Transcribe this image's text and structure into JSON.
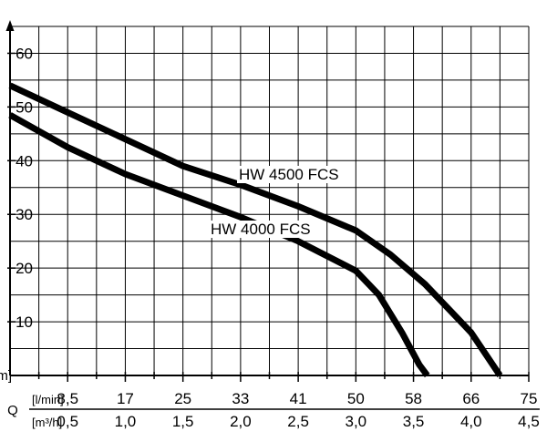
{
  "chart_data": {
    "type": "line",
    "y_axis": {
      "label": "H[m]",
      "ticks": [
        "10",
        "20",
        "30",
        "40",
        "50",
        "60"
      ],
      "ylim": [
        0,
        65
      ]
    },
    "x_axis": {
      "label": "Q",
      "xlim": [
        0,
        4.5
      ],
      "rows": [
        {
          "unit": "[l/min]",
          "ticks": [
            "8,5",
            "17",
            "25",
            "33",
            "41",
            "50",
            "58",
            "66",
            "75"
          ]
        },
        {
          "unit": "[m³/h]",
          "ticks": [
            "0,5",
            "1,0",
            "1,5",
            "2,0",
            "2,5",
            "3,0",
            "3,5",
            "4,0",
            "4,5"
          ]
        }
      ]
    },
    "grid": true,
    "series": [
      {
        "name": "HW 4500 FCS",
        "color": "#000000",
        "x": [
          0,
          0.5,
          1.0,
          1.5,
          2.0,
          2.5,
          3.0,
          3.3,
          3.6,
          4.0,
          4.25
        ],
        "y": [
          54,
          49,
          44,
          39,
          35.5,
          31.5,
          27,
          22.5,
          17,
          8,
          0
        ]
      },
      {
        "name": "HW 4000 FCS",
        "color": "#000000",
        "x": [
          0,
          0.5,
          1.0,
          1.5,
          2.0,
          2.5,
          3.0,
          3.2,
          3.4,
          3.55,
          3.62
        ],
        "y": [
          48.5,
          42.5,
          37.5,
          33.5,
          29.5,
          25,
          19.5,
          15,
          8,
          2,
          0
        ]
      }
    ]
  }
}
